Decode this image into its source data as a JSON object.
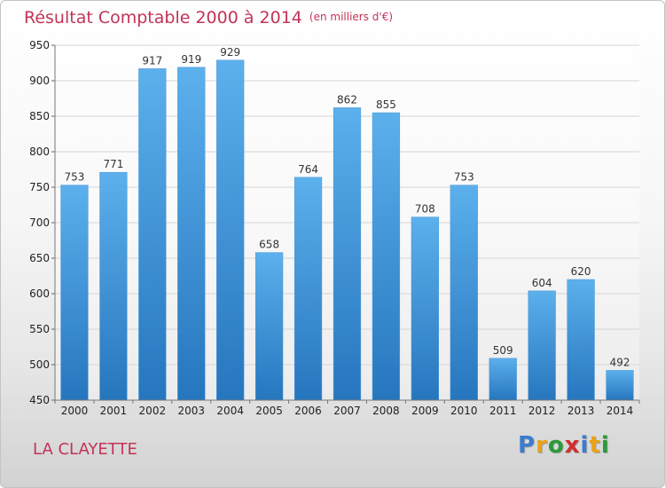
{
  "header": {
    "title": "Résultat Comptable 2000 à 2014",
    "unit": "(en milliers d'€)"
  },
  "footer": {
    "commune": "LA CLAYETTE",
    "logo": [
      "P",
      "r",
      "o",
      "x",
      "i",
      "t",
      "i"
    ],
    "logo_colors": [
      "#3a7cd0",
      "#e8a21a",
      "#2b9a3a",
      "#d02e2e",
      "#3a7cd0",
      "#e8a21a",
      "#2b9a3a"
    ]
  },
  "colors": {
    "title": "#c33357",
    "bar_light": "#5cb0ec",
    "bar_dark": "#2676be",
    "grid": "#d5d5d5"
  },
  "chart_data": {
    "type": "bar",
    "title": "Résultat Comptable 2000 à 2014",
    "subtitle": "(en milliers d'€)",
    "categories": [
      "2000",
      "2001",
      "2002",
      "2003",
      "2004",
      "2005",
      "2006",
      "2007",
      "2008",
      "2009",
      "2010",
      "2011",
      "2012",
      "2013",
      "2014"
    ],
    "values": [
      753,
      771,
      917,
      919,
      929,
      658,
      764,
      862,
      855,
      708,
      753,
      509,
      604,
      620,
      492
    ],
    "ylim": [
      450,
      950
    ],
    "yticks": [
      450,
      500,
      550,
      600,
      650,
      700,
      750,
      800,
      850,
      900,
      950
    ],
    "grid": true,
    "data_labels": true
  }
}
